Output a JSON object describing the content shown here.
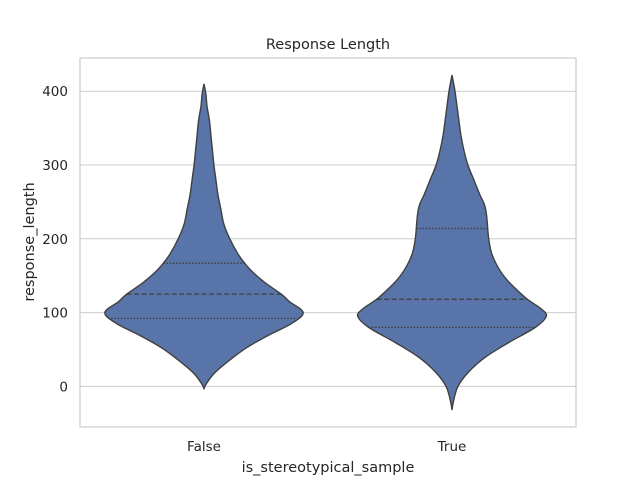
{
  "chart_data": {
    "type": "violin",
    "title": "Response Length",
    "xlabel": "is_stereotypical_sample",
    "ylabel": "response_length",
    "categories": [
      "False",
      "True"
    ],
    "ylim": [
      -55,
      445
    ],
    "yticks": [
      0,
      100,
      200,
      300,
      400
    ],
    "grid": "horizontal",
    "fill_color": "#5874a8",
    "line_color": "#404040",
    "violins": [
      {
        "category": "False",
        "min": -3,
        "max": 410,
        "quartiles": {
          "q25": 92,
          "median": 125,
          "q75": 167
        },
        "density_profile": [
          [
            -3,
            0.0
          ],
          [
            5,
            0.03
          ],
          [
            20,
            0.12
          ],
          [
            40,
            0.3
          ],
          [
            55,
            0.46
          ],
          [
            70,
            0.66
          ],
          [
            85,
            0.88
          ],
          [
            100,
            1.0
          ],
          [
            115,
            0.86
          ],
          [
            125,
            0.78
          ],
          [
            140,
            0.62
          ],
          [
            155,
            0.49
          ],
          [
            167,
            0.41
          ],
          [
            180,
            0.34
          ],
          [
            200,
            0.26
          ],
          [
            220,
            0.2
          ],
          [
            240,
            0.17
          ],
          [
            260,
            0.14
          ],
          [
            280,
            0.12
          ],
          [
            300,
            0.1
          ],
          [
            320,
            0.085
          ],
          [
            340,
            0.07
          ],
          [
            360,
            0.055
          ],
          [
            380,
            0.03
          ],
          [
            395,
            0.02
          ],
          [
            410,
            0.0
          ]
        ]
      },
      {
        "category": "True",
        "min": -32,
        "max": 422,
        "quartiles": {
          "q25": 80,
          "median": 118,
          "q75": 214
        },
        "density_profile": [
          [
            -32,
            0.0
          ],
          [
            -20,
            0.015
          ],
          [
            0,
            0.06
          ],
          [
            20,
            0.17
          ],
          [
            40,
            0.34
          ],
          [
            60,
            0.58
          ],
          [
            80,
            0.84
          ],
          [
            95,
            0.95
          ],
          [
            105,
            0.9
          ],
          [
            118,
            0.76
          ],
          [
            130,
            0.66
          ],
          [
            145,
            0.55
          ],
          [
            160,
            0.47
          ],
          [
            180,
            0.4
          ],
          [
            200,
            0.37
          ],
          [
            214,
            0.36
          ],
          [
            230,
            0.35
          ],
          [
            245,
            0.33
          ],
          [
            260,
            0.28
          ],
          [
            280,
            0.22
          ],
          [
            300,
            0.16
          ],
          [
            320,
            0.12
          ],
          [
            340,
            0.09
          ],
          [
            360,
            0.07
          ],
          [
            380,
            0.05
          ],
          [
            400,
            0.03
          ],
          [
            422,
            0.0
          ]
        ]
      }
    ]
  }
}
